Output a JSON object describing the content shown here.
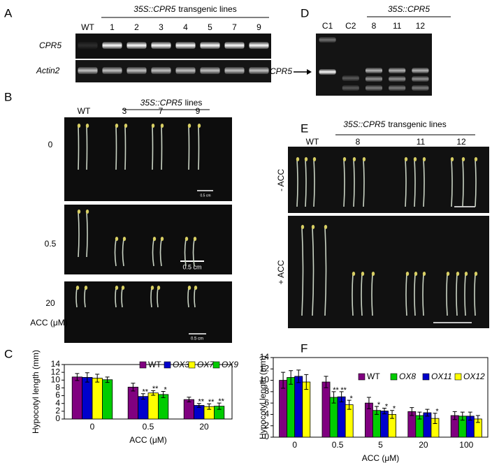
{
  "panels": {
    "A": {
      "label": "A",
      "header_construct": "35S::CPR5",
      "header_suffix": "transgenic lines",
      "lanes": [
        "WT",
        "1",
        "2",
        "3",
        "4",
        "5",
        "7",
        "9"
      ],
      "rows": [
        "CPR5",
        "Actin2"
      ]
    },
    "B": {
      "label": "B",
      "header_construct": "35S::CPR5",
      "header_suffix": "lines",
      "lanes": [
        "WT",
        "3",
        "7",
        "9"
      ],
      "rows": [
        "0",
        "0.5",
        "20"
      ],
      "unit": "ACC (μM)",
      "scales": [
        "0.5 cm",
        "0.5 cm",
        "0.5 cm"
      ]
    },
    "C": {
      "label": "C"
    },
    "D": {
      "label": "D",
      "header_construct": "35S::CPR5",
      "lanes": [
        "C1",
        "C2",
        "8",
        "11",
        "12"
      ],
      "band": "CPR5"
    },
    "E": {
      "label": "E",
      "header_construct": "35S::CPR5",
      "header_suffix": "transgenic lines",
      "lanes": [
        "WT",
        "8",
        "11",
        "12"
      ],
      "rows": [
        "- ACC",
        "+ ACC"
      ]
    },
    "F": {
      "label": "F"
    }
  },
  "chart_data": [
    {
      "type": "bar",
      "ylabel": "Hypocotyl length (mm)",
      "xlabel": "ACC (μM)",
      "categories": [
        "0",
        "0.5",
        "20"
      ],
      "ylim": [
        0,
        14
      ],
      "yticks": [
        0,
        2,
        4,
        6,
        8,
        10,
        12,
        14
      ],
      "series": [
        {
          "name": "WT",
          "color": "#800080",
          "values": [
            10.8,
            8.2,
            5.0
          ],
          "errors": [
            0.9,
            1.0,
            0.6
          ],
          "stars": [
            null,
            null,
            null
          ]
        },
        {
          "name": "OX3",
          "color": "#0000cc",
          "values": [
            10.7,
            5.8,
            3.5
          ],
          "errors": [
            1.2,
            0.7,
            0.5
          ],
          "stars": [
            null,
            "**",
            "**"
          ]
        },
        {
          "name": "OX7",
          "color": "#ffff00",
          "values": [
            10.5,
            6.7,
            3.2
          ],
          "errors": [
            1.0,
            0.6,
            0.7
          ],
          "stars": [
            null,
            "**",
            "**"
          ]
        },
        {
          "name": "OX9",
          "color": "#00cc00",
          "values": [
            10.1,
            6.3,
            3.3
          ],
          "errors": [
            0.7,
            0.8,
            0.8
          ],
          "stars": [
            null,
            "*",
            "**"
          ]
        }
      ]
    },
    {
      "type": "bar",
      "ylabel": "Hypocotyl length (mm)",
      "xlabel": "ACC (μM)",
      "categories": [
        "0",
        "0.5",
        "5",
        "20",
        "100"
      ],
      "ylim": [
        0,
        14
      ],
      "yticks": [
        0,
        2,
        4,
        6,
        8,
        10,
        12,
        14
      ],
      "series": [
        {
          "name": "WT",
          "color": "#800080",
          "values": [
            10.0,
            9.7,
            6.0,
            4.5,
            3.8
          ],
          "errors": [
            1.4,
            1.0,
            1.0,
            0.7,
            0.7
          ],
          "stars": [
            null,
            null,
            null,
            null,
            null
          ]
        },
        {
          "name": "OX8",
          "color": "#00cc00",
          "values": [
            10.5,
            7.0,
            4.7,
            3.8,
            3.7
          ],
          "errors": [
            1.2,
            1.0,
            0.7,
            0.6,
            0.7
          ],
          "stars": [
            null,
            "**",
            "*",
            null,
            null
          ]
        },
        {
          "name": "OX11",
          "color": "#0000cc",
          "values": [
            10.7,
            7.1,
            4.6,
            4.3,
            3.7
          ],
          "errors": [
            1.1,
            0.9,
            0.5,
            0.6,
            0.7
          ],
          "stars": [
            null,
            "**",
            "*",
            null,
            null
          ]
        },
        {
          "name": "OX12",
          "color": "#ffff00",
          "values": [
            9.7,
            5.7,
            4.0,
            3.3,
            3.2
          ],
          "errors": [
            1.3,
            0.8,
            0.7,
            0.9,
            0.6
          ],
          "stars": [
            null,
            "*",
            "*",
            "*",
            null
          ]
        }
      ]
    }
  ]
}
